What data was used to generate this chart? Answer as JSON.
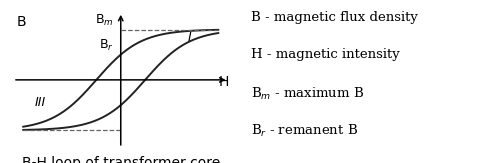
{
  "title": "B-H loop of transformer core",
  "legend_lines": [
    "B - magnetic flux density",
    "H - magnetic intensity",
    "B$_m$ - maximum B",
    "B$_r$ - remanent B"
  ],
  "axis_label_B": "B",
  "axis_label_H": "H",
  "label_Bm": "B$_m$",
  "label_Br": "B$_r$",
  "label_I": "I",
  "label_III": "III",
  "curve_color": "#222222",
  "dashed_color": "#666666",
  "background": "#ffffff",
  "title_fontsize": 10,
  "legend_fontsize": 9.5,
  "axis_label_fontsize": 10,
  "annotation_fontsize": 9,
  "Bm": 0.72,
  "shift": 0.22,
  "Hsat": 0.88
}
